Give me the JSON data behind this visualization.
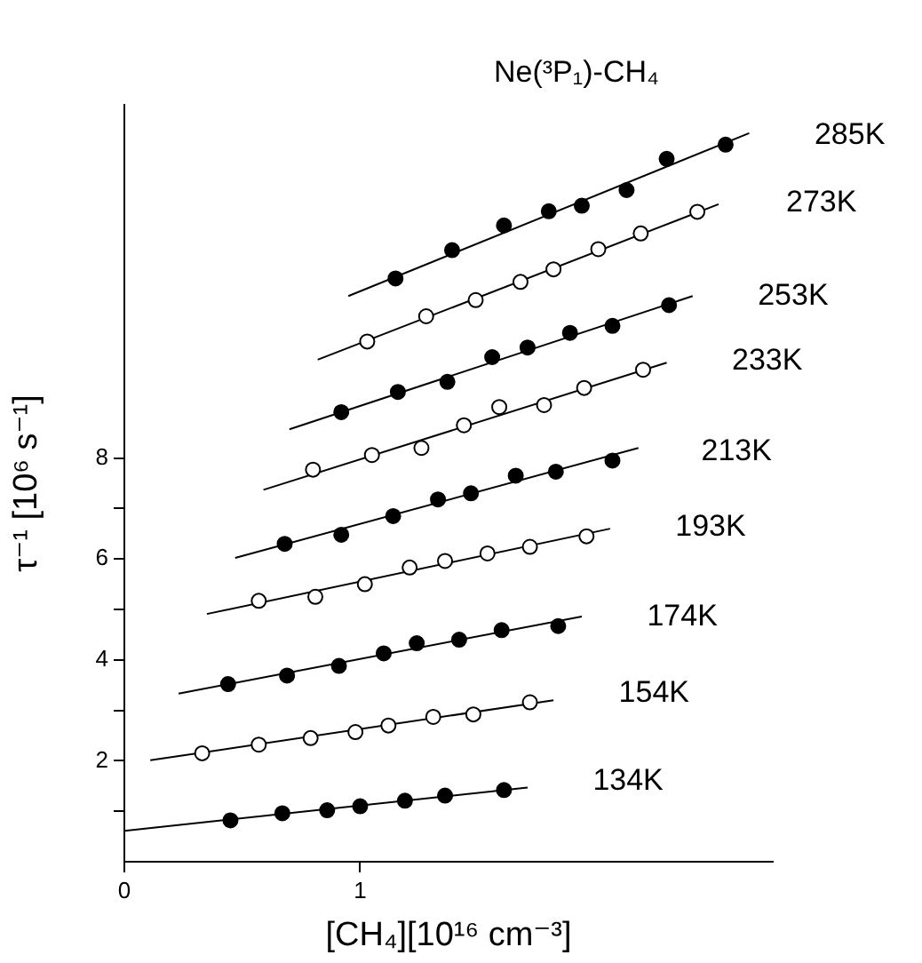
{
  "chart_data": {
    "type": "scatter",
    "title": "Ne(³P₁)-CH₄",
    "xlabel": "[CH₄][10¹⁶ cm⁻³]",
    "ylabel": "τ⁻¹ [10⁶ s⁻¹]",
    "xlim": [
      0,
      2.75
    ],
    "ylim": [
      0,
      15
    ],
    "xticks": [
      0,
      1
    ],
    "yticks": [
      {
        "value": 1,
        "label": null
      },
      2,
      {
        "value": 3,
        "label": null
      },
      4,
      {
        "value": 5,
        "label": null
      },
      6,
      {
        "value": 7,
        "label": null
      },
      8
    ],
    "grid": false,
    "legend": false,
    "marker": "circle",
    "series": [
      {
        "name": "134K",
        "color": "#000000",
        "x": [
          0.45,
          0.67,
          0.86,
          1.0,
          1.19,
          1.36,
          1.61
        ],
        "values": [
          0.82,
          0.96,
          1.02,
          1.1,
          1.21,
          1.31,
          1.42
        ]
      },
      {
        "name": "154K",
        "color": "#ffffff",
        "x": [
          0.33,
          0.57,
          0.79,
          0.98,
          1.12,
          1.31,
          1.48,
          1.72
        ],
        "values": [
          2.15,
          2.32,
          2.45,
          2.57,
          2.7,
          2.87,
          2.92,
          3.16
        ]
      },
      {
        "name": "174K",
        "color": "#000000",
        "x": [
          0.44,
          0.69,
          0.91,
          1.1,
          1.24,
          1.42,
          1.6,
          1.84
        ],
        "values": [
          3.52,
          3.69,
          3.88,
          4.13,
          4.33,
          4.4,
          4.59,
          4.67
        ]
      },
      {
        "name": "193K",
        "color": "#ffffff",
        "x": [
          0.57,
          0.81,
          1.02,
          1.21,
          1.36,
          1.54,
          1.72,
          1.96
        ],
        "values": [
          5.17,
          5.25,
          5.5,
          5.83,
          5.96,
          6.11,
          6.24,
          6.45
        ]
      },
      {
        "name": "213K",
        "color": "#000000",
        "x": [
          0.68,
          0.92,
          1.14,
          1.33,
          1.47,
          1.66,
          1.83,
          2.07
        ],
        "values": [
          6.3,
          6.48,
          6.85,
          7.18,
          7.3,
          7.65,
          7.73,
          7.95
        ]
      },
      {
        "name": "233K",
        "color": "#ffffff",
        "x": [
          0.8,
          1.05,
          1.26,
          1.44,
          1.59,
          1.78,
          1.95,
          2.2
        ],
        "values": [
          7.77,
          8.06,
          8.2,
          8.65,
          9.01,
          9.05,
          9.39,
          9.75
        ]
      },
      {
        "name": "253K",
        "color": "#000000",
        "x": [
          0.92,
          1.16,
          1.37,
          1.56,
          1.71,
          1.89,
          2.07,
          2.31
        ],
        "values": [
          8.91,
          9.31,
          9.51,
          10.0,
          10.19,
          10.48,
          10.62,
          11.03
        ]
      },
      {
        "name": "273K",
        "color": "#ffffff",
        "x": [
          1.03,
          1.28,
          1.49,
          1.68,
          1.82,
          2.01,
          2.19,
          2.43
        ],
        "values": [
          10.31,
          10.81,
          11.13,
          11.49,
          11.74,
          12.14,
          12.45,
          12.88
        ]
      },
      {
        "name": "285K",
        "color": "#000000",
        "x": [
          1.15,
          1.39,
          1.61,
          1.8,
          1.94,
          2.13,
          2.3,
          2.55
        ],
        "values": [
          11.56,
          12.12,
          12.61,
          12.89,
          13.0,
          13.31,
          13.93,
          14.21
        ]
      },
      {
        "type": "line",
        "marker": "none",
        "color": "#000000",
        "x": [
          0,
          1.71
        ],
        "values": [
          0.61,
          1.47
        ]
      },
      {
        "type": "line",
        "marker": "none",
        "color": "#000000",
        "x": [
          0.11,
          1.82
        ],
        "values": [
          2.01,
          3.2
        ]
      },
      {
        "type": "line",
        "marker": "none",
        "color": "#000000",
        "x": [
          0.23,
          1.94
        ],
        "values": [
          3.33,
          4.86
        ]
      },
      {
        "type": "line",
        "marker": "none",
        "color": "#000000",
        "x": [
          0.35,
          2.06
        ],
        "values": [
          4.91,
          6.6
        ]
      },
      {
        "type": "line",
        "marker": "none",
        "color": "#000000",
        "x": [
          0.47,
          2.18
        ],
        "values": [
          6.02,
          8.2
        ]
      },
      {
        "type": "line",
        "marker": "none",
        "color": "#000000",
        "x": [
          0.59,
          2.3
        ],
        "values": [
          7.37,
          9.89
        ]
      },
      {
        "type": "line",
        "marker": "none",
        "color": "#000000",
        "x": [
          0.7,
          2.41
        ],
        "values": [
          8.57,
          11.21
        ]
      },
      {
        "type": "line",
        "marker": "none",
        "color": "#000000",
        "x": [
          0.82,
          2.52
        ],
        "values": [
          9.95,
          13.03
        ]
      },
      {
        "type": "line",
        "marker": "none",
        "color": "#000000",
        "x": [
          0.95,
          2.65
        ],
        "values": [
          11.21,
          14.44
        ]
      }
    ]
  }
}
